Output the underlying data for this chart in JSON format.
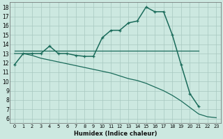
{
  "xlabel": "Humidex (Indice chaleur)",
  "background_color": "#cce8e0",
  "line_color": "#1a6b5a",
  "xlim": [
    -0.5,
    23.5
  ],
  "ylim": [
    5.5,
    18.5
  ],
  "curve_x": [
    0,
    1,
    2,
    3,
    4,
    5,
    6,
    7,
    8,
    9,
    10,
    11,
    12,
    13,
    14,
    15,
    16,
    17,
    18,
    19,
    20,
    21
  ],
  "curve_y": [
    11.8,
    13.0,
    13.0,
    13.0,
    13.8,
    13.0,
    13.0,
    12.8,
    12.7,
    12.7,
    14.7,
    15.5,
    15.5,
    16.3,
    16.5,
    18.0,
    17.5,
    17.5,
    15.0,
    11.8,
    8.7,
    7.3
  ],
  "flat_x": [
    0,
    1,
    2,
    3,
    4,
    5,
    6,
    7,
    8,
    9,
    10,
    11,
    12,
    13,
    14,
    15,
    16,
    17,
    18,
    19,
    20,
    21
  ],
  "flat_y": [
    13.3,
    13.3,
    13.3,
    13.3,
    13.3,
    13.3,
    13.3,
    13.3,
    13.3,
    13.3,
    13.3,
    13.3,
    13.3,
    13.3,
    13.3,
    13.3,
    13.3,
    13.3,
    13.3,
    13.3,
    13.3,
    13.3
  ],
  "desc_x": [
    0,
    1,
    2,
    3,
    4,
    5,
    6,
    7,
    8,
    9,
    10,
    11,
    12,
    13,
    14,
    15,
    16,
    17,
    18,
    19,
    20,
    21,
    22,
    23
  ],
  "desc_y": [
    13.0,
    13.0,
    12.8,
    12.5,
    12.3,
    12.1,
    11.9,
    11.7,
    11.5,
    11.3,
    11.1,
    10.9,
    10.6,
    10.3,
    10.1,
    9.8,
    9.4,
    9.0,
    8.5,
    7.9,
    7.2,
    6.5,
    6.2,
    6.1
  ]
}
